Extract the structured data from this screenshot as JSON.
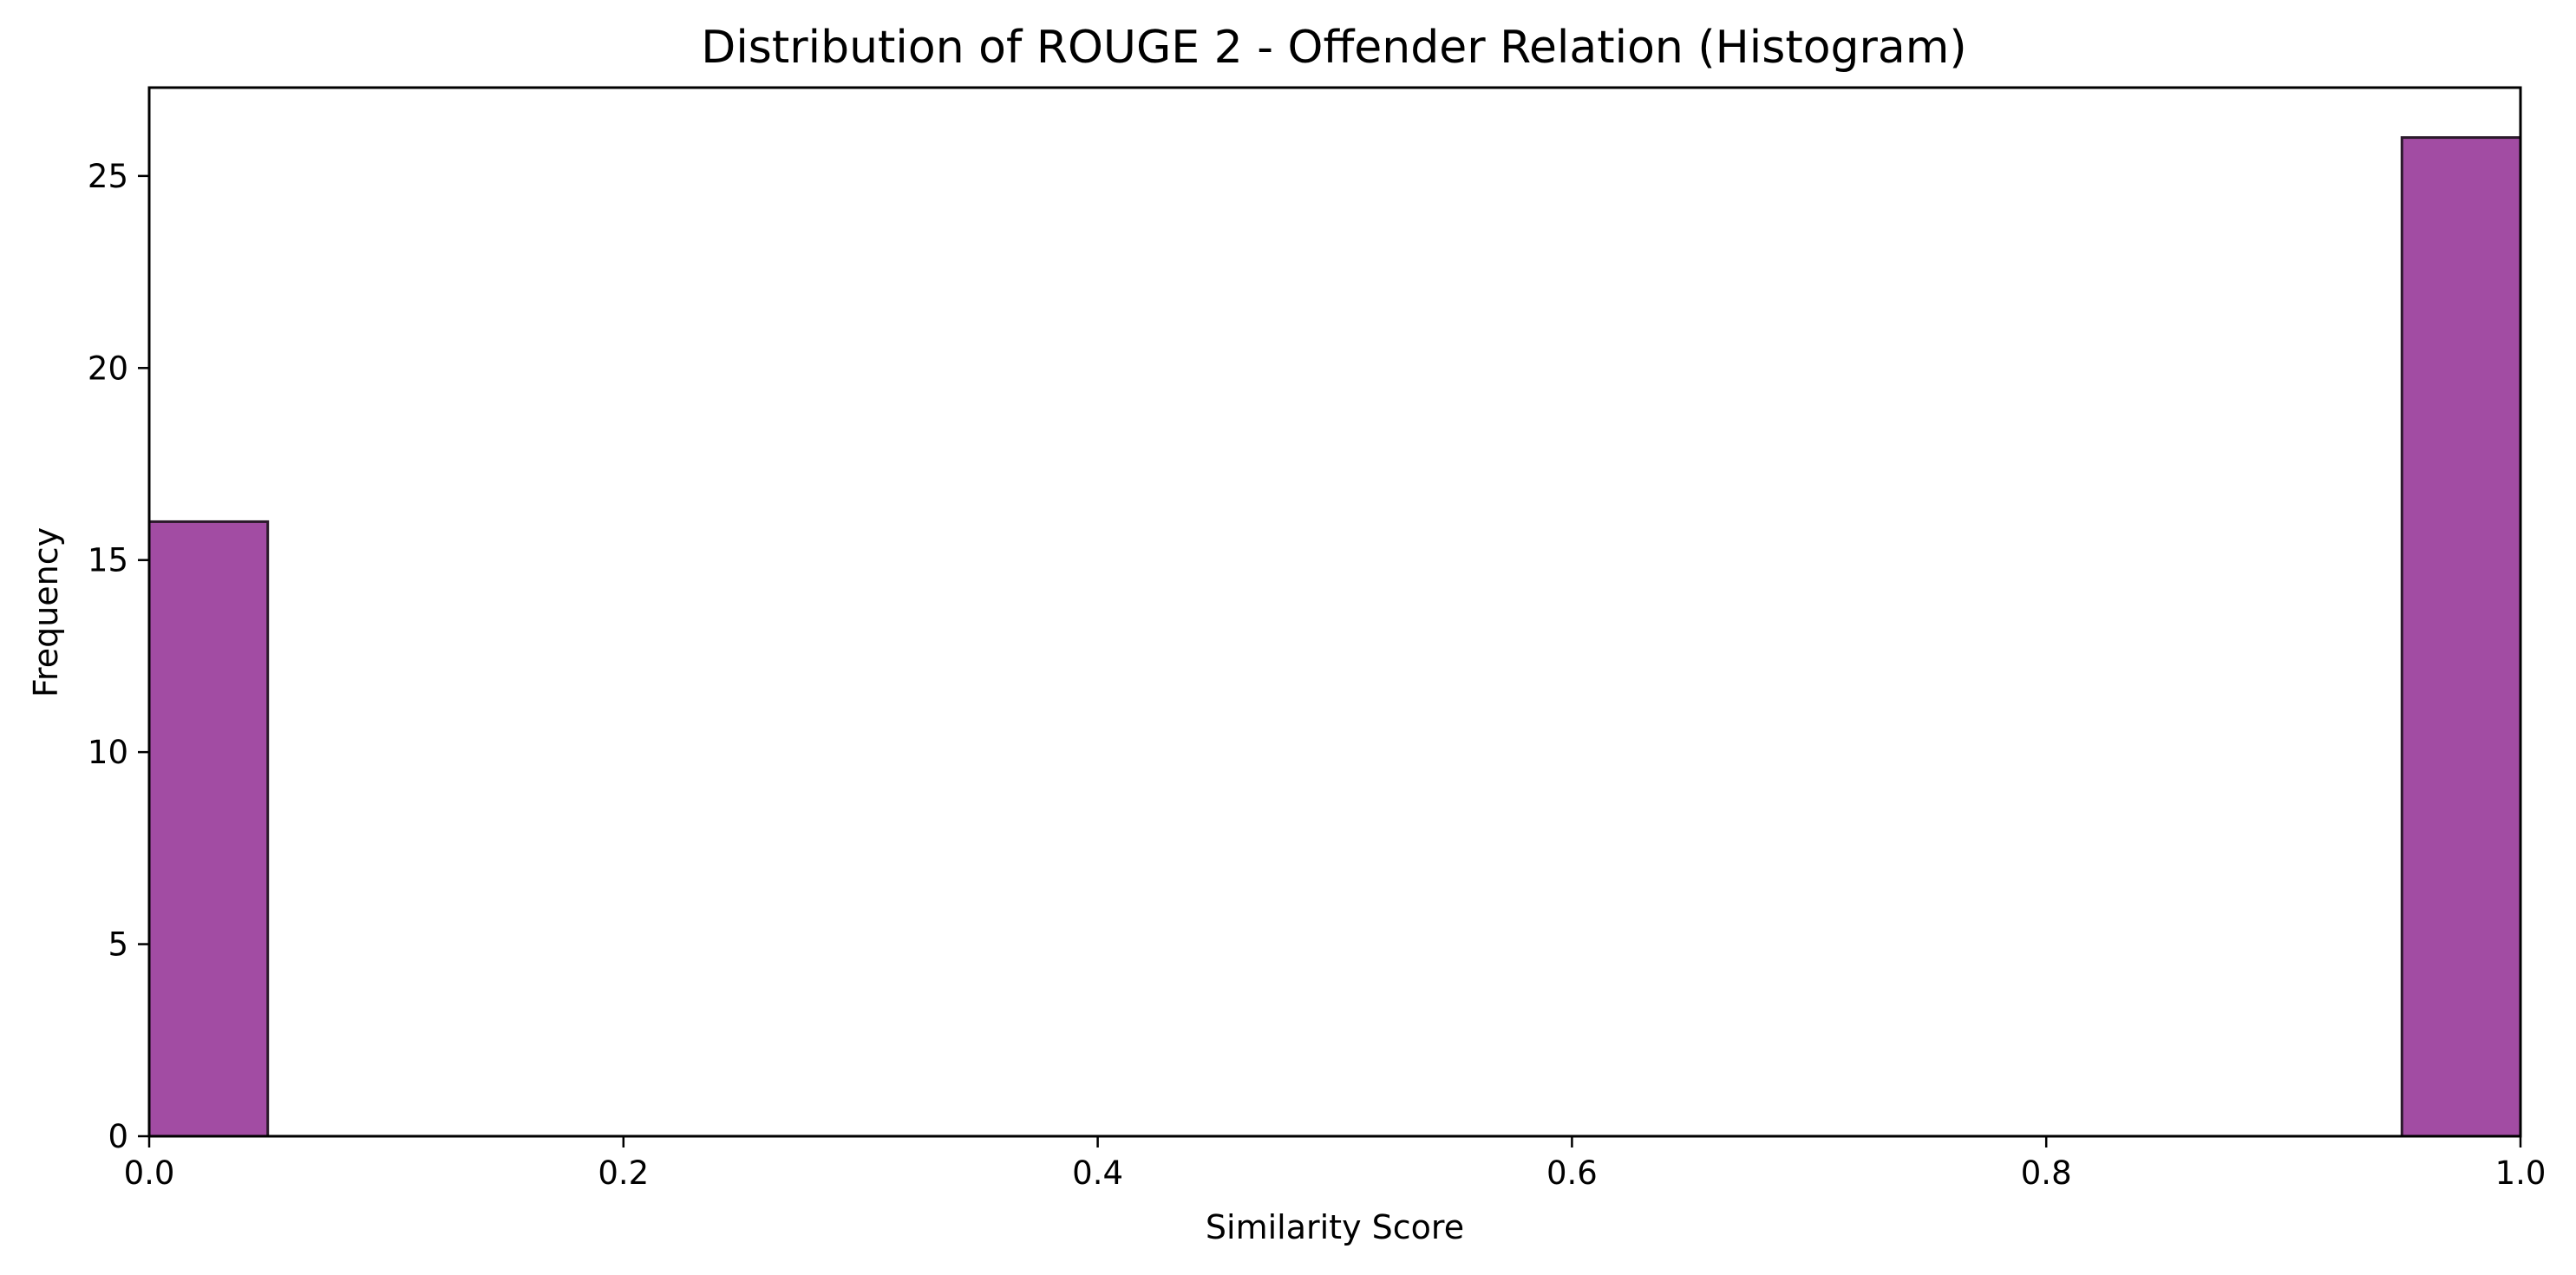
{
  "chart_data": {
    "type": "bar",
    "title": "Distribution of ROUGE 2 - Offender Relation (Histogram)",
    "xlabel": "Similarity Score",
    "ylabel": "Frequency",
    "xlim": [
      0.0,
      1.0
    ],
    "ylim": [
      0,
      27.3
    ],
    "x_ticks": [
      0.0,
      0.2,
      0.4,
      0.6,
      0.8,
      1.0
    ],
    "x_tick_labels": [
      "0.0",
      "0.2",
      "0.4",
      "0.6",
      "0.8",
      "1.0"
    ],
    "y_ticks": [
      0,
      5,
      10,
      15,
      20,
      25
    ],
    "y_tick_labels": [
      "0",
      "5",
      "10",
      "15",
      "20",
      "25"
    ],
    "bins": [
      {
        "x0": 0.0,
        "x1": 0.05,
        "value": 16
      },
      {
        "x0": 0.95,
        "x1": 1.0,
        "value": 26
      }
    ],
    "bar_color": "#a24ca3",
    "bar_edge_color": "#2b1a2b",
    "grid": false,
    "legend": false
  }
}
